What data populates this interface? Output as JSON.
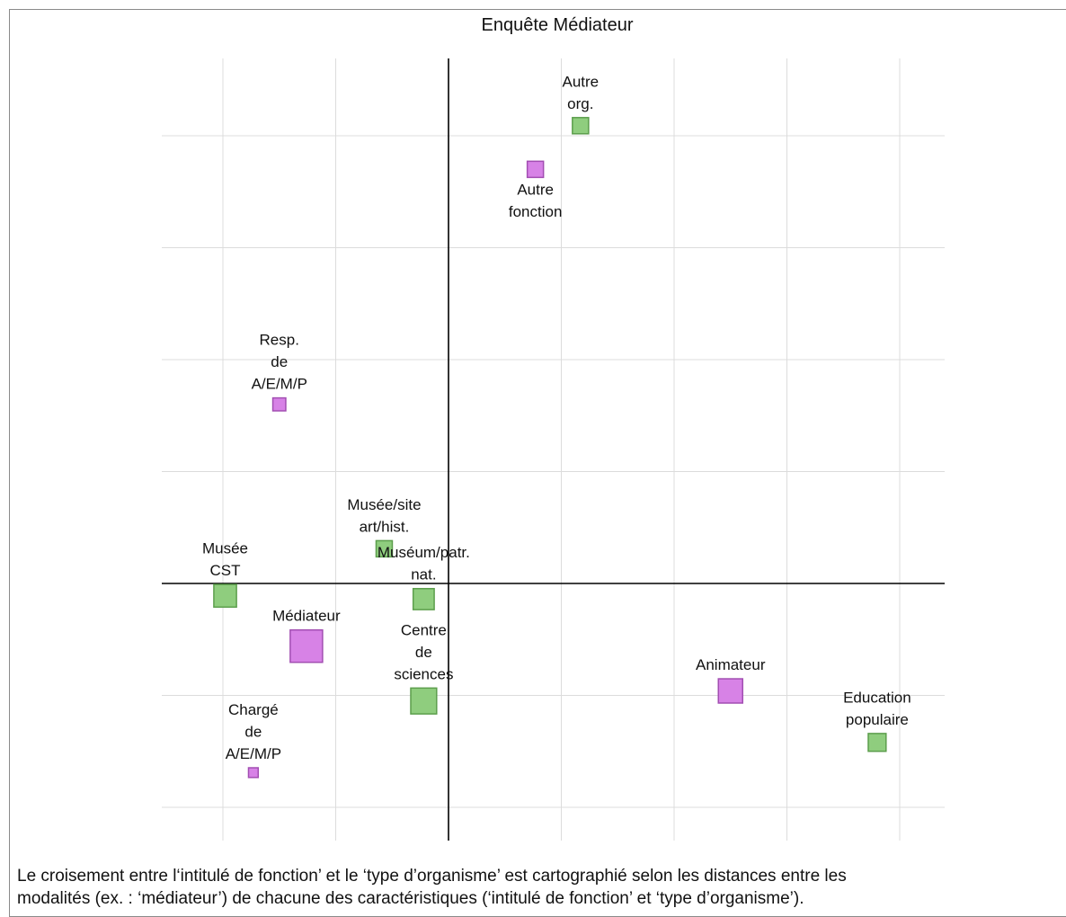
{
  "chart_data": {
    "type": "scatter",
    "title": "Enquête Médiateur",
    "xlabel": "",
    "ylabel": "",
    "xlim": [
      -2.0,
      4.4
    ],
    "ylim": [
      -2.4,
      4.6
    ],
    "xticks": [
      -2,
      -1,
      1,
      2,
      3,
      4
    ],
    "yticks": [
      -2,
      -1,
      1,
      2,
      3,
      4
    ],
    "grid": true,
    "legend": "none",
    "series": [
      {
        "color": "#8fcd7e",
        "stroke": "#5c9e4c",
        "points": [
          {
            "label": "Autre org.",
            "lines": [
              "Autre",
              "org."
            ],
            "x": 1.17,
            "y": 4.09,
            "weight": 1.0
          },
          {
            "label": "Musée/site art/hist.",
            "lines": [
              "Musée/site",
              "art/hist."
            ],
            "x": -0.57,
            "y": 0.31,
            "weight": 1.0
          },
          {
            "label": "Muséum/patr. nat.",
            "lines": [
              "Muséum/patr.",
              "nat."
            ],
            "x": -0.22,
            "y": -0.14,
            "weight": 1.3
          },
          {
            "label": "Musée CST",
            "lines": [
              "Musée",
              "CST"
            ],
            "x": -1.98,
            "y": -0.11,
            "weight": 1.4
          },
          {
            "label": "Centre de sciences",
            "lines": [
              "Centre",
              "de",
              "sciences"
            ],
            "x": -0.22,
            "y": -1.05,
            "weight": 1.6
          },
          {
            "label": "Education populaire",
            "lines": [
              "Education",
              "populaire"
            ],
            "x": 3.8,
            "y": -1.42,
            "weight": 1.1
          }
        ]
      },
      {
        "color": "#d782e6",
        "stroke": "#a24eb2",
        "points": [
          {
            "label": "Autre fonction",
            "lines": [
              "Autre",
              "fonction"
            ],
            "x": 0.77,
            "y": 3.7,
            "weight": 1.0
          },
          {
            "label": "Resp. de A/E/M/P",
            "lines": [
              "Resp.",
              "de",
              "A/E/M/P"
            ],
            "x": -1.5,
            "y": 1.6,
            "weight": 0.8
          },
          {
            "label": "Médiateur",
            "lines": [
              "Médiateur"
            ],
            "x": -1.26,
            "y": -0.56,
            "weight": 2.0
          },
          {
            "label": "Animateur",
            "lines": [
              "Animateur"
            ],
            "x": 2.5,
            "y": -0.96,
            "weight": 1.5
          },
          {
            "label": "Chargé de A/E/M/P",
            "lines": [
              "Chargé",
              "de",
              "A/E/M/P"
            ],
            "x": -1.73,
            "y": -1.69,
            "weight": 0.6
          }
        ]
      }
    ]
  },
  "caption": {
    "line1": "Le croisement entre l‘intitulé de fonction’ et le ‘type d’organisme’ est cartographié selon les distances entre les",
    "line2": "modalités (ex. : ‘médiateur’) de chacune des caractéristiques (‘intitulé de fonction’ et ‘type d’organisme’)."
  }
}
